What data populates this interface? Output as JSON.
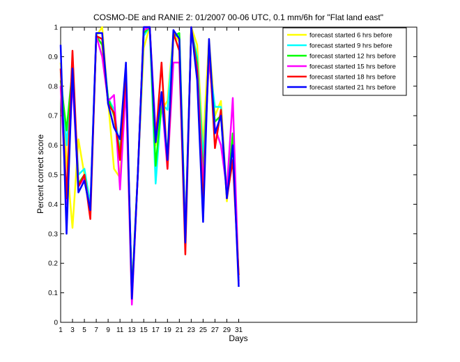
{
  "chart_data": {
    "type": "line",
    "title": "COSMO-DE and RANIE 2: 01/2007 00-06 UTC, 0.1 mm/6h for \"Flat land east\"",
    "xlabel": "Days",
    "ylabel": "Percent correct score",
    "xlim": [
      1,
      61
    ],
    "ylim": [
      0,
      1
    ],
    "xticks": [
      1,
      3,
      5,
      7,
      9,
      11,
      13,
      15,
      17,
      19,
      21,
      23,
      25,
      27,
      29,
      31
    ],
    "yticks": [
      0,
      0.1,
      0.2,
      0.3,
      0.4,
      0.5,
      0.6,
      0.7,
      0.8,
      0.9,
      1
    ],
    "ytick_labels": [
      "0",
      "0.1",
      "0.2",
      "0.3",
      "0.4",
      "0.5",
      "0.6",
      "0.7",
      "0.8",
      "0.9",
      "1"
    ],
    "grid": false,
    "legend_position": "top-right",
    "x": [
      1,
      2,
      3,
      4,
      5,
      6,
      7,
      8,
      9,
      10,
      11,
      12,
      13,
      14,
      15,
      16,
      17,
      18,
      19,
      20,
      21,
      22,
      23,
      24,
      25,
      26,
      27,
      28,
      29,
      30,
      31
    ],
    "series": [
      {
        "name": "forecast started 6 hrs before",
        "color": "#ffff00",
        "values": [
          0.88,
          0.55,
          0.32,
          0.62,
          0.5,
          0.38,
          0.97,
          1.0,
          0.75,
          0.52,
          0.49,
          0.82,
          0.1,
          0.5,
          0.93,
          1.0,
          0.6,
          0.72,
          0.75,
          0.98,
          0.95,
          0.3,
          1.0,
          0.94,
          0.6,
          0.96,
          0.7,
          0.75,
          0.41,
          0.62,
          0.15
        ]
      },
      {
        "name": "forecast started 9 hrs before",
        "color": "#00ffff",
        "values": [
          0.85,
          0.6,
          0.85,
          0.5,
          0.52,
          0.4,
          0.97,
          0.96,
          0.76,
          0.72,
          0.58,
          0.82,
          0.1,
          0.5,
          0.97,
          1.0,
          0.47,
          0.74,
          0.72,
          0.97,
          0.97,
          0.3,
          0.99,
          0.9,
          0.55,
          0.88,
          0.73,
          0.73,
          0.43,
          0.63,
          0.15
        ]
      },
      {
        "name": "forecast started 12 hrs before",
        "color": "#00ff00",
        "values": [
          0.82,
          0.65,
          0.86,
          0.47,
          0.5,
          0.38,
          0.97,
          0.94,
          0.76,
          0.7,
          0.57,
          0.82,
          0.1,
          0.5,
          0.98,
          1.0,
          0.53,
          0.74,
          0.57,
          0.97,
          0.98,
          0.3,
          0.99,
          0.88,
          0.5,
          0.9,
          0.68,
          0.7,
          0.43,
          0.64,
          0.14
        ]
      },
      {
        "name": "forecast started 15 hrs before",
        "color": "#ff00ff",
        "values": [
          0.8,
          0.4,
          0.82,
          0.46,
          0.49,
          0.38,
          0.97,
          0.9,
          0.75,
          0.77,
          0.45,
          0.8,
          0.06,
          0.5,
          0.99,
          1.0,
          0.65,
          0.76,
          0.52,
          0.88,
          0.88,
          0.3,
          0.99,
          0.86,
          0.46,
          0.9,
          0.66,
          0.6,
          0.45,
          0.76,
          0.13
        ]
      },
      {
        "name": "forecast started 18 hrs before",
        "color": "#ff0000",
        "values": [
          0.86,
          0.42,
          0.92,
          0.46,
          0.5,
          0.35,
          0.97,
          0.96,
          0.74,
          0.71,
          0.55,
          0.85,
          0.08,
          0.5,
          1.0,
          1.0,
          0.61,
          0.88,
          0.52,
          0.98,
          0.92,
          0.23,
          1.0,
          0.85,
          0.39,
          0.95,
          0.59,
          0.72,
          0.42,
          0.55,
          0.16
        ]
      },
      {
        "name": "forecast started 21 hrs before",
        "color": "#0000ff",
        "values": [
          0.94,
          0.3,
          0.86,
          0.44,
          0.48,
          0.38,
          0.98,
          0.98,
          0.74,
          0.66,
          0.62,
          0.88,
          0.08,
          0.5,
          1.0,
          1.0,
          0.61,
          0.78,
          0.55,
          0.99,
          0.96,
          0.27,
          1.0,
          0.82,
          0.34,
          0.96,
          0.64,
          0.7,
          0.42,
          0.6,
          0.12
        ]
      }
    ]
  }
}
